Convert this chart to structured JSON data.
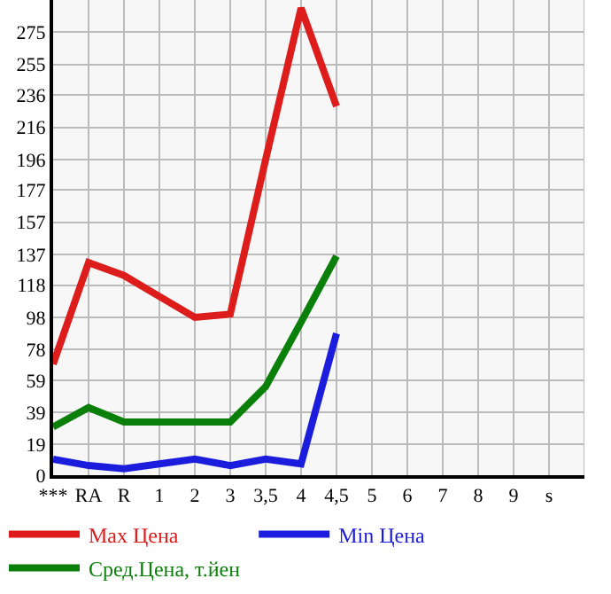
{
  "chart_data": {
    "type": "line",
    "categories": [
      "***",
      "RA",
      "R",
      "1",
      "2",
      "3",
      "3,5",
      "4",
      "4,5",
      "5",
      "6",
      "7",
      "8",
      "9",
      "s"
    ],
    "series": [
      {
        "name": "Max Цена",
        "color": "#dd1c1c",
        "values": [
          69,
          132,
          124,
          111,
          98,
          100,
          196,
          290,
          229,
          null,
          null,
          null,
          null,
          null,
          null
        ]
      },
      {
        "name": "Min Цена",
        "color": "#1c1cdd",
        "values": [
          10,
          6,
          4,
          7,
          10,
          6,
          10,
          7,
          88,
          null,
          null,
          null,
          null,
          null,
          null
        ]
      },
      {
        "name": "Сред.Цена, т.йен",
        "color": "#0a7f0a",
        "values": [
          30,
          42,
          33,
          33,
          33,
          33,
          55,
          95,
          136,
          null,
          null,
          null,
          null,
          null,
          null
        ]
      }
    ],
    "ylim": [
      0,
      295
    ],
    "yticks": [
      0,
      19,
      39,
      59,
      78,
      98,
      118,
      137,
      157,
      177,
      196,
      216,
      236,
      255,
      275
    ],
    "grid": true,
    "legend": "bottom",
    "marker": "none",
    "line_style": "solid"
  }
}
